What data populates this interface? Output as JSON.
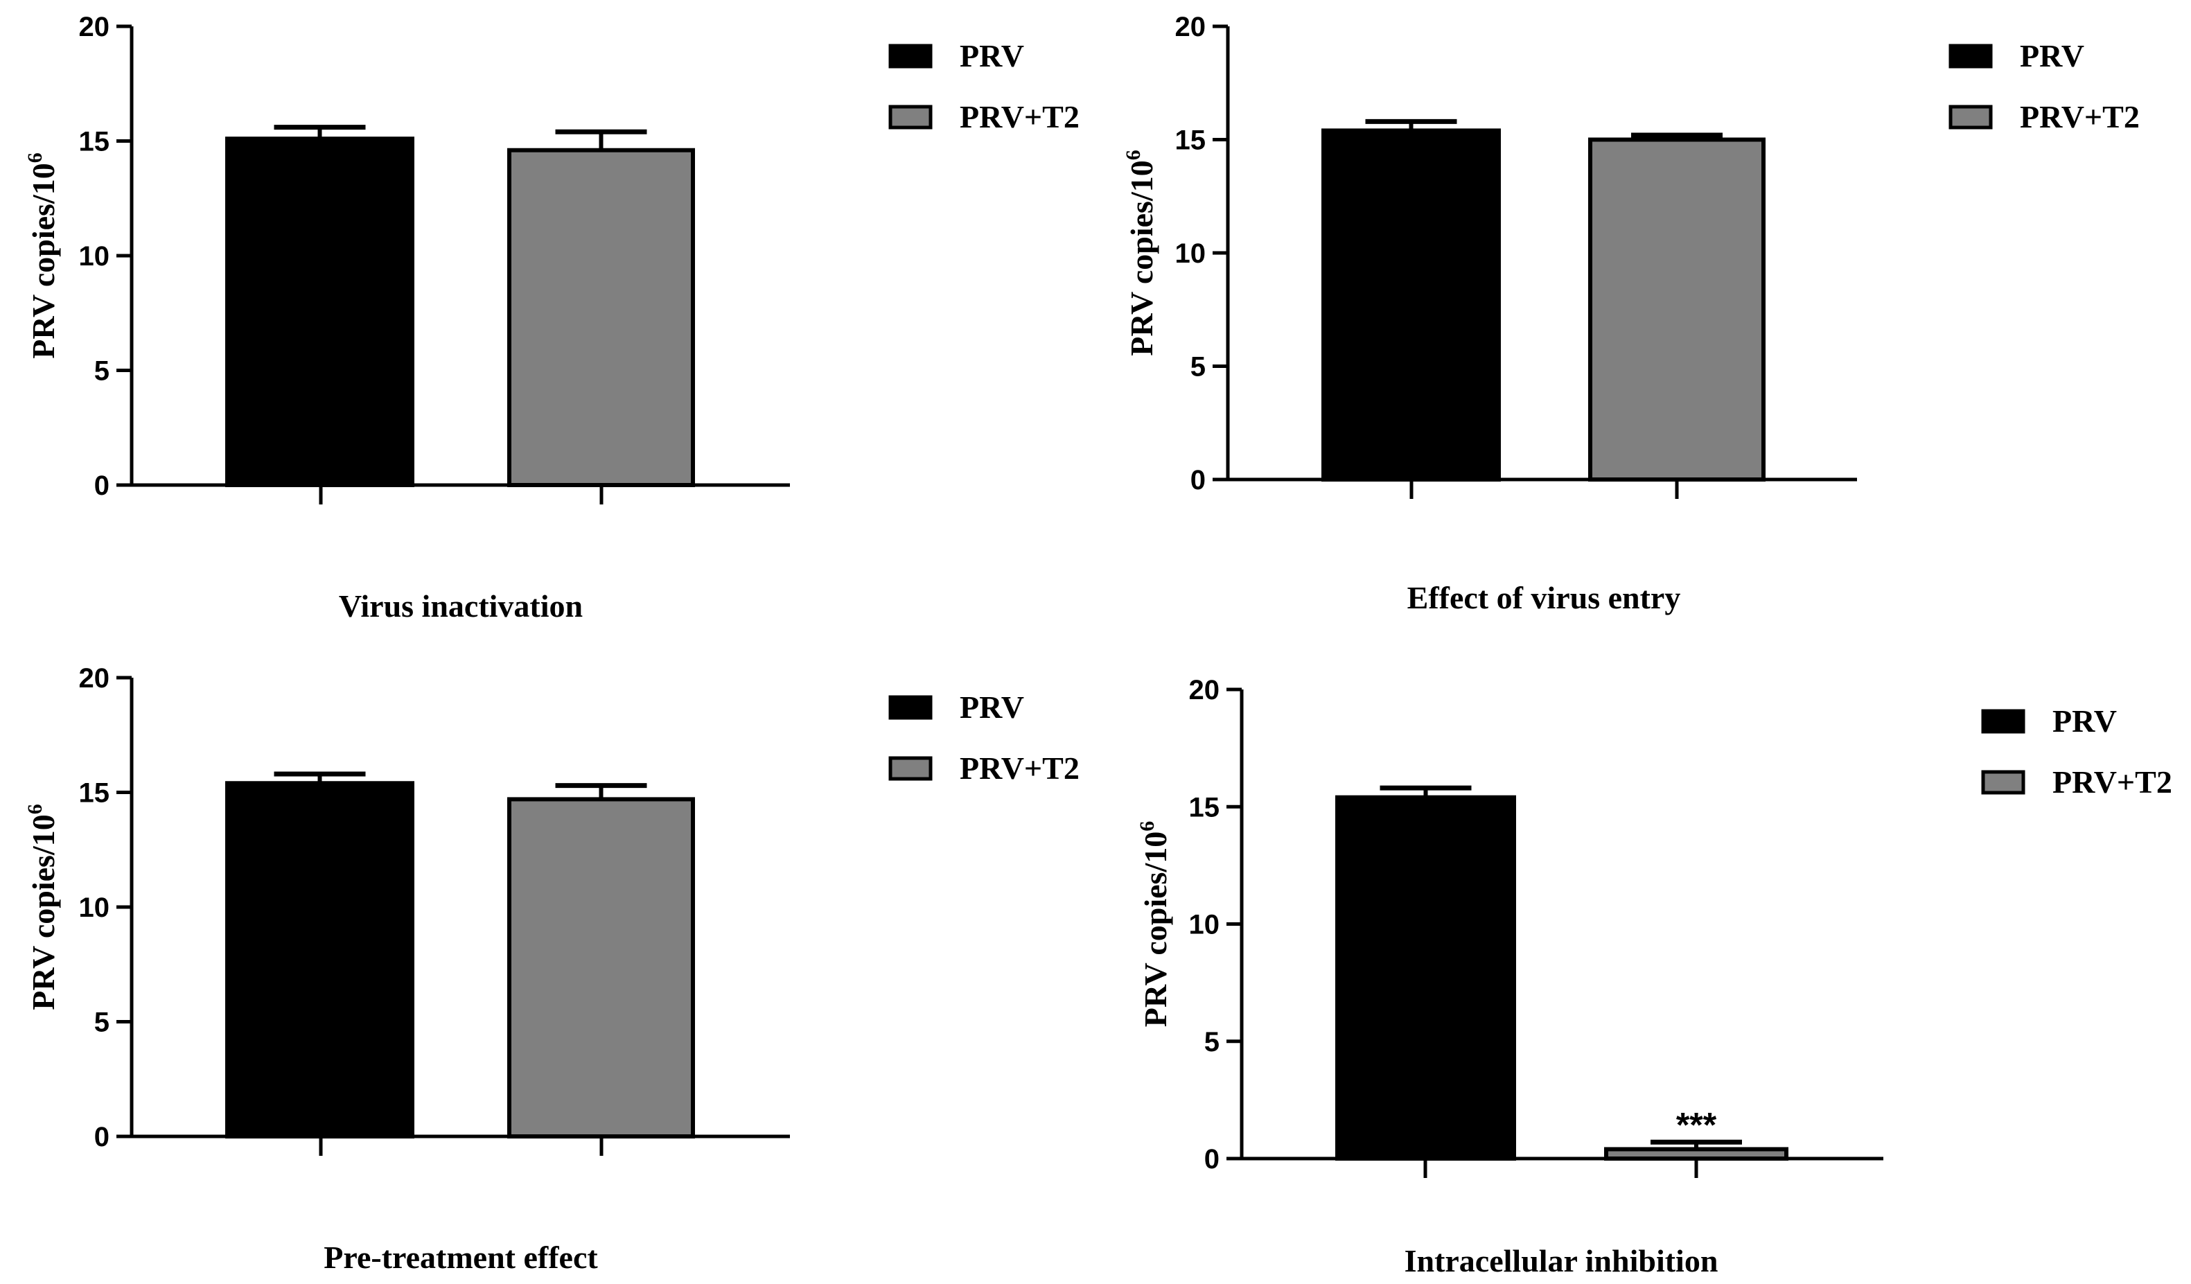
{
  "chart_data": [
    {
      "type": "bar",
      "title": "Virus inactivation",
      "xlabel": "",
      "ylabel": "PRV copies/10",
      "ylabel_superscript": "6",
      "ylim": [
        0,
        20
      ],
      "yticks": [
        0,
        5,
        10,
        15,
        20
      ],
      "categories": [
        "PRV",
        "PRV+T2"
      ],
      "values": [
        15.1,
        14.6
      ],
      "errors": [
        0.5,
        0.8
      ],
      "colors": [
        "#000000",
        "#808080"
      ],
      "legend": [
        "PRV",
        "PRV+T2"
      ],
      "legend_position": "top-right",
      "annotations": []
    },
    {
      "type": "bar",
      "title": "Effect of virus entry",
      "xlabel": "",
      "ylabel": "PRV copies/10",
      "ylabel_superscript": "6",
      "ylim": [
        0,
        20
      ],
      "yticks": [
        0,
        5,
        10,
        15,
        20
      ],
      "categories": [
        "PRV",
        "PRV+T2"
      ],
      "values": [
        15.4,
        15.0
      ],
      "errors": [
        0.4,
        0.2
      ],
      "colors": [
        "#000000",
        "#808080"
      ],
      "legend": [
        "PRV",
        "PRV+T2"
      ],
      "legend_position": "top-right",
      "annotations": []
    },
    {
      "type": "bar",
      "title": "Pre-treatment effect",
      "xlabel": "",
      "ylabel": "PRV copies/10",
      "ylabel_superscript": "6",
      "ylim": [
        0,
        20
      ],
      "yticks": [
        0,
        5,
        10,
        15,
        20
      ],
      "categories": [
        "PRV",
        "PRV+T2"
      ],
      "values": [
        15.4,
        14.7
      ],
      "errors": [
        0.4,
        0.6
      ],
      "colors": [
        "#000000",
        "#808080"
      ],
      "legend": [
        "PRV",
        "PRV+T2"
      ],
      "legend_position": "top-right",
      "annotations": []
    },
    {
      "type": "bar",
      "title": "Intracellular inhibition",
      "xlabel": "",
      "ylabel": "PRV copies/10",
      "ylabel_superscript": "6",
      "ylim": [
        0,
        20
      ],
      "yticks": [
        0,
        5,
        10,
        15,
        20
      ],
      "categories": [
        "PRV",
        "PRV+T2"
      ],
      "values": [
        15.4,
        0.4
      ],
      "errors": [
        0.4,
        0.3
      ],
      "colors": [
        "#000000",
        "#808080"
      ],
      "legend": [
        "PRV",
        "PRV+T2"
      ],
      "legend_position": "top-right",
      "annotations": [
        {
          "category": "PRV+T2",
          "text": "***"
        }
      ]
    }
  ]
}
